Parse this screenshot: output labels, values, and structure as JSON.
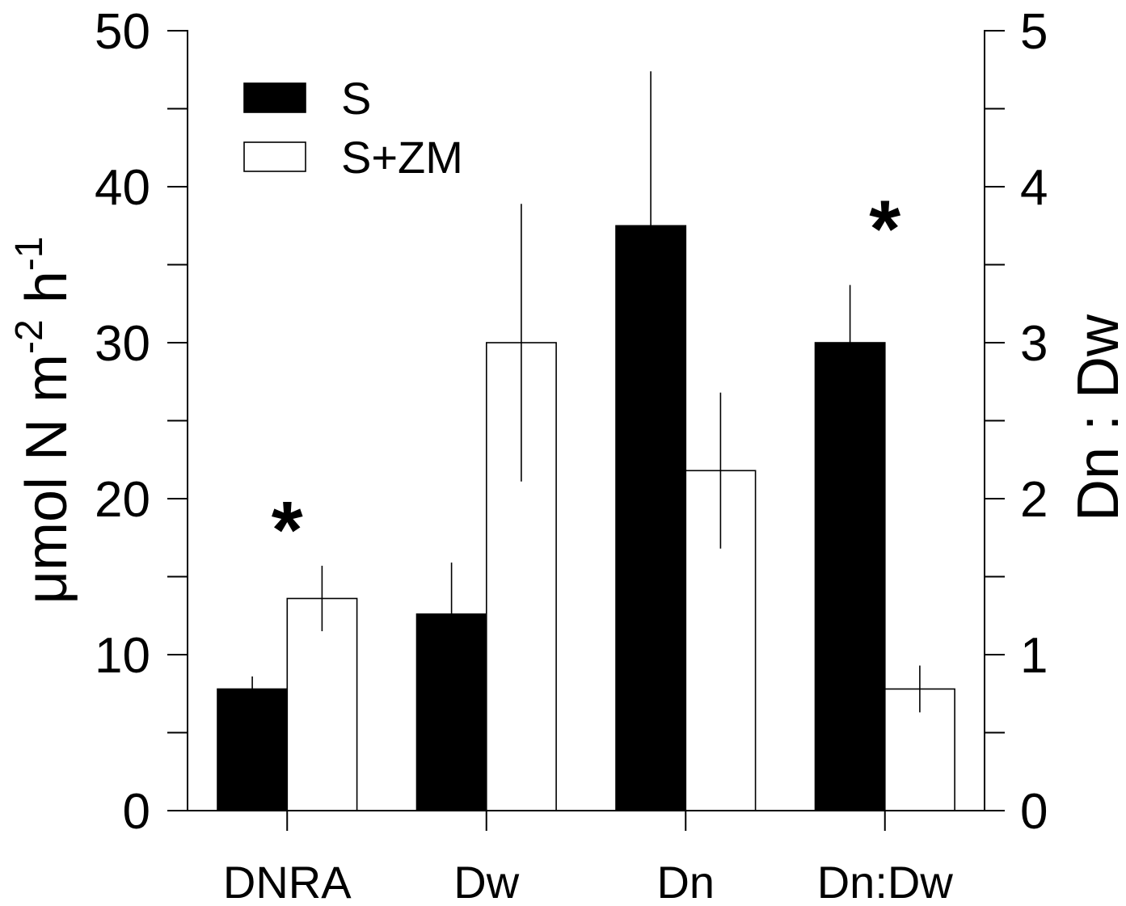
{
  "chart_data": {
    "type": "bar",
    "categories": [
      "DNRA",
      "Dw",
      "Dn",
      "Dn:Dw"
    ],
    "category_axis": [
      "left",
      "left",
      "left",
      "right"
    ],
    "series": [
      {
        "name": "S",
        "color": "#000000",
        "values": [
          7.8,
          12.6,
          37.5,
          3.0
        ],
        "errors": [
          0.8,
          3.3,
          9.9,
          0.37
        ]
      },
      {
        "name": "S+ZM",
        "color": "#ffffff",
        "values": [
          13.6,
          30.0,
          21.8,
          0.78
        ],
        "errors": [
          2.1,
          8.9,
          5.0,
          0.15
        ]
      }
    ],
    "ylabel_parts": [
      {
        "text": "μmol N m",
        "sup": false
      },
      {
        "text": "-2",
        "sup": true
      },
      {
        "text": " h",
        "sup": false
      },
      {
        "text": "-1",
        "sup": true
      }
    ],
    "y2label": "Dn : Dw",
    "ylim": [
      0,
      50
    ],
    "y2lim": [
      0,
      5
    ],
    "yticks": [
      0,
      10,
      20,
      30,
      40,
      50
    ],
    "yminor": [
      5,
      15,
      25,
      35,
      45
    ],
    "y2ticks": [
      0,
      1,
      2,
      3,
      4,
      5
    ],
    "y2minor": [
      0.5,
      1.5,
      2.5,
      3.5,
      4.5
    ],
    "grid": false,
    "legend_position": "top-left",
    "significance": [
      {
        "category": "DNRA",
        "marker": "*"
      },
      {
        "category": "Dn:Dw",
        "marker": "*"
      }
    ]
  }
}
